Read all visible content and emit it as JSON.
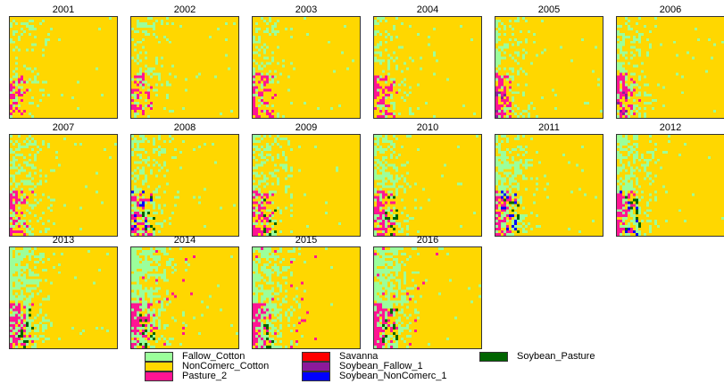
{
  "years": [
    "2001",
    "2002",
    "2003",
    "2004",
    "2005",
    "2006",
    "2007",
    "2008",
    "2009",
    "2010",
    "2011",
    "2012",
    "2013",
    "2014",
    "2015",
    "2016"
  ],
  "classes": [
    {
      "name": "Fallow_Cotton",
      "color": "#9BFF9B"
    },
    {
      "name": "NonComerc_Cotton",
      "color": "#FFD700"
    },
    {
      "name": "Pasture_2",
      "color": "#FF1493"
    },
    {
      "name": "Savanna",
      "color": "#FF0000"
    },
    {
      "name": "Soybean_Fallow_1",
      "color": "#8B1A9B"
    },
    {
      "name": "Soybean_NonComerc_1",
      "color": "#0000FF"
    },
    {
      "name": "Soybean_Pasture",
      "color": "#006400"
    }
  ]
}
